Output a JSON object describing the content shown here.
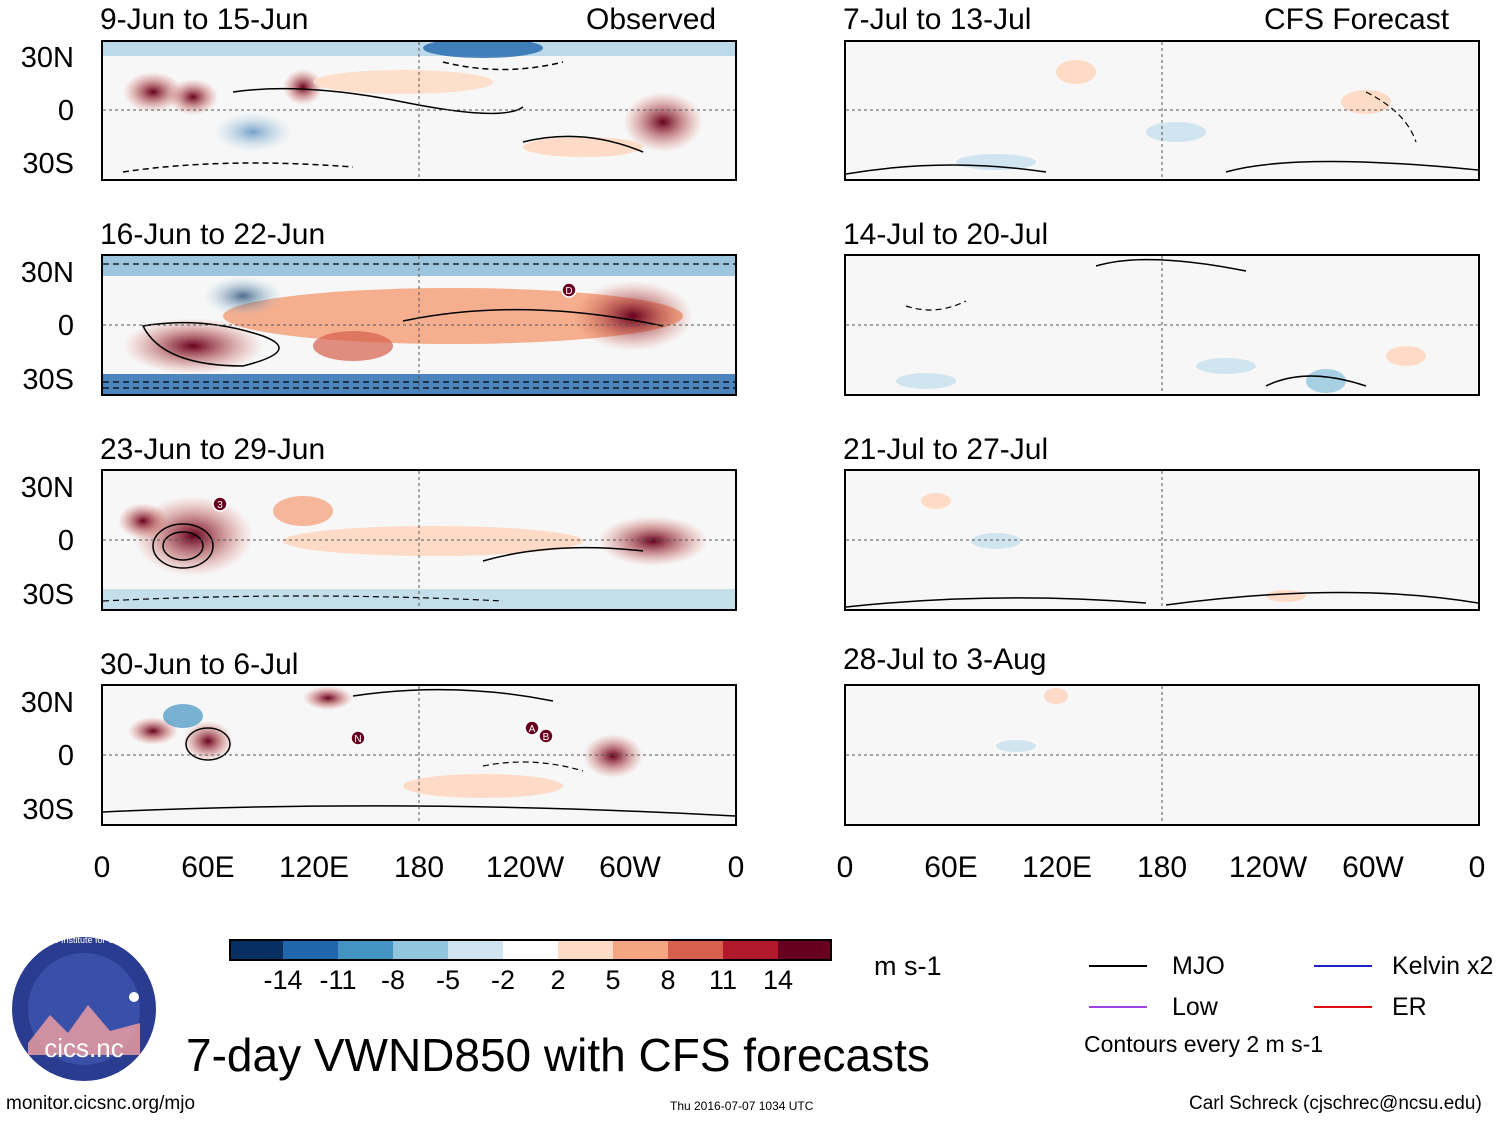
{
  "figure_title": "7-day VWND850 with CFS forecasts",
  "observed_header": "Observed",
  "forecast_header": "CFS Forecast",
  "observed_panels": [
    {
      "title": "9-Jun to 15-Jun"
    },
    {
      "title": "16-Jun to 22-Jun"
    },
    {
      "title": "23-Jun to 29-Jun"
    },
    {
      "title": "30-Jun to 6-Jul"
    }
  ],
  "forecast_panels": [
    {
      "title": "7-Jul to 13-Jul"
    },
    {
      "title": "14-Jul to 20-Jul"
    },
    {
      "title": "21-Jul to 27-Jul"
    },
    {
      "title": "28-Jul to 3-Aug"
    }
  ],
  "lat_labels": [
    "30N",
    "0",
    "30S"
  ],
  "lon_labels": [
    "0",
    "60E",
    "120E",
    "180",
    "120W",
    "60W",
    "0"
  ],
  "colorbar": {
    "units": "m s-1",
    "labels": [
      "-14",
      "-11",
      "-8",
      "-5",
      "-2",
      "2",
      "5",
      "8",
      "11",
      "14"
    ],
    "colors": [
      "#053061",
      "#2166ac",
      "#4393c3",
      "#92c5de",
      "#d1e5f0",
      "#ffffff",
      "#fddbc7",
      "#f4a582",
      "#d6604d",
      "#b2182b",
      "#67001f"
    ]
  },
  "legend": {
    "items": [
      {
        "label": "MJO",
        "color": "#000000"
      },
      {
        "label": "Kelvin x2",
        "color": "#1f1fcf"
      },
      {
        "label": "Low",
        "color": "#a040e0"
      },
      {
        "label": "ER",
        "color": "#e01010"
      }
    ],
    "note": "Contours every 2 m s-1"
  },
  "logo_text": "cics.nc",
  "logo_ring_text": "Cooperative Institute for Climate and Satellites",
  "footer": {
    "left": "monitor.cicsnc.org/mjo",
    "center": "Thu 2016-07-07 1034 UTC",
    "right": "Carl Schreck (cjschrec@ncsu.edu)"
  },
  "storm_markers": [
    {
      "panel": "16-Jun to 22-Jun",
      "label": "D"
    },
    {
      "panel": "23-Jun to 29-Jun",
      "label": "3"
    },
    {
      "panel": "30-Jun to 6-Jul",
      "label": "N"
    },
    {
      "panel": "30-Jun to 6-Jul",
      "label": "A"
    },
    {
      "panel": "30-Jun to 6-Jul",
      "label": "B"
    }
  ]
}
